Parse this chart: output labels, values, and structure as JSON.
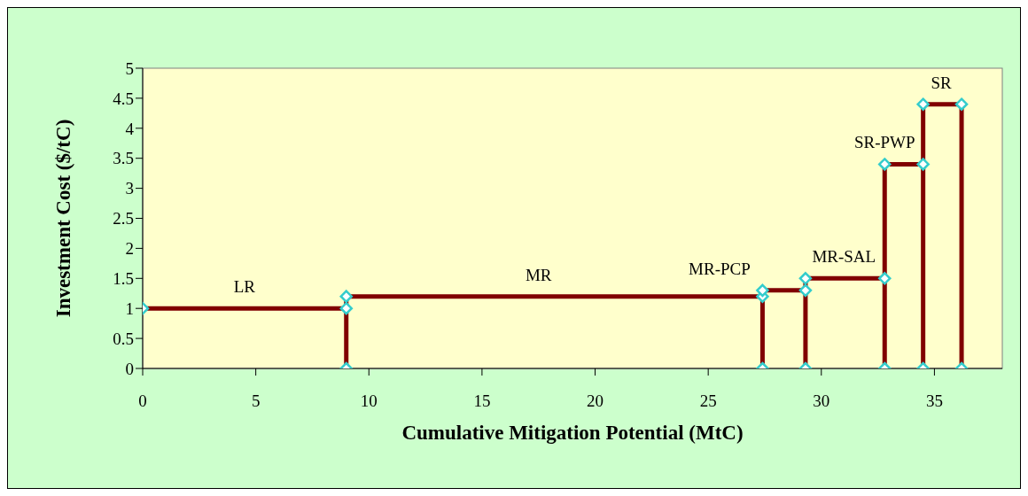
{
  "chart_data": {
    "type": "line",
    "xlabel": "Cumulative Mitigation Potential (MtC)",
    "ylabel": "Investment Cost ($/tC)",
    "x": [
      0,
      9,
      9,
      9,
      27.4,
      27.4,
      27.4,
      29.3,
      29.3,
      29.3,
      32.8,
      32.8,
      32.8,
      34.5,
      34.5,
      34.5,
      36.2,
      36.2
    ],
    "series": [
      {
        "color": "#800000",
        "values": [
          1,
          1,
          0,
          1.2,
          1.2,
          0,
          1.3,
          1.3,
          0,
          1.5,
          1.5,
          0,
          3.4,
          3.4,
          0,
          4.4,
          4.4,
          0
        ]
      }
    ],
    "marker": "diamond",
    "grid": false,
    "xlim": [
      0,
      38
    ],
    "xticks": [
      0,
      5,
      10,
      15,
      20,
      25,
      30,
      35
    ],
    "ylim": [
      0,
      5
    ],
    "yticks": [
      0,
      0.5,
      1,
      1.5,
      2,
      2.5,
      3,
      3.5,
      4,
      4.5,
      5
    ],
    "annotations": [
      {
        "text": "LR",
        "x": 4.5,
        "y": 1
      },
      {
        "text": "MR",
        "x": 17.5,
        "y": 1.2
      },
      {
        "text": "MR-PCP",
        "x": 25.5,
        "y": 1.3
      },
      {
        "text": "MR-SAL",
        "x": 31,
        "y": 1.5
      },
      {
        "text": "SR-PWP",
        "x": 32.8,
        "y": 3.4
      },
      {
        "text": "SR",
        "x": 35.3,
        "y": 4.4
      }
    ]
  }
}
